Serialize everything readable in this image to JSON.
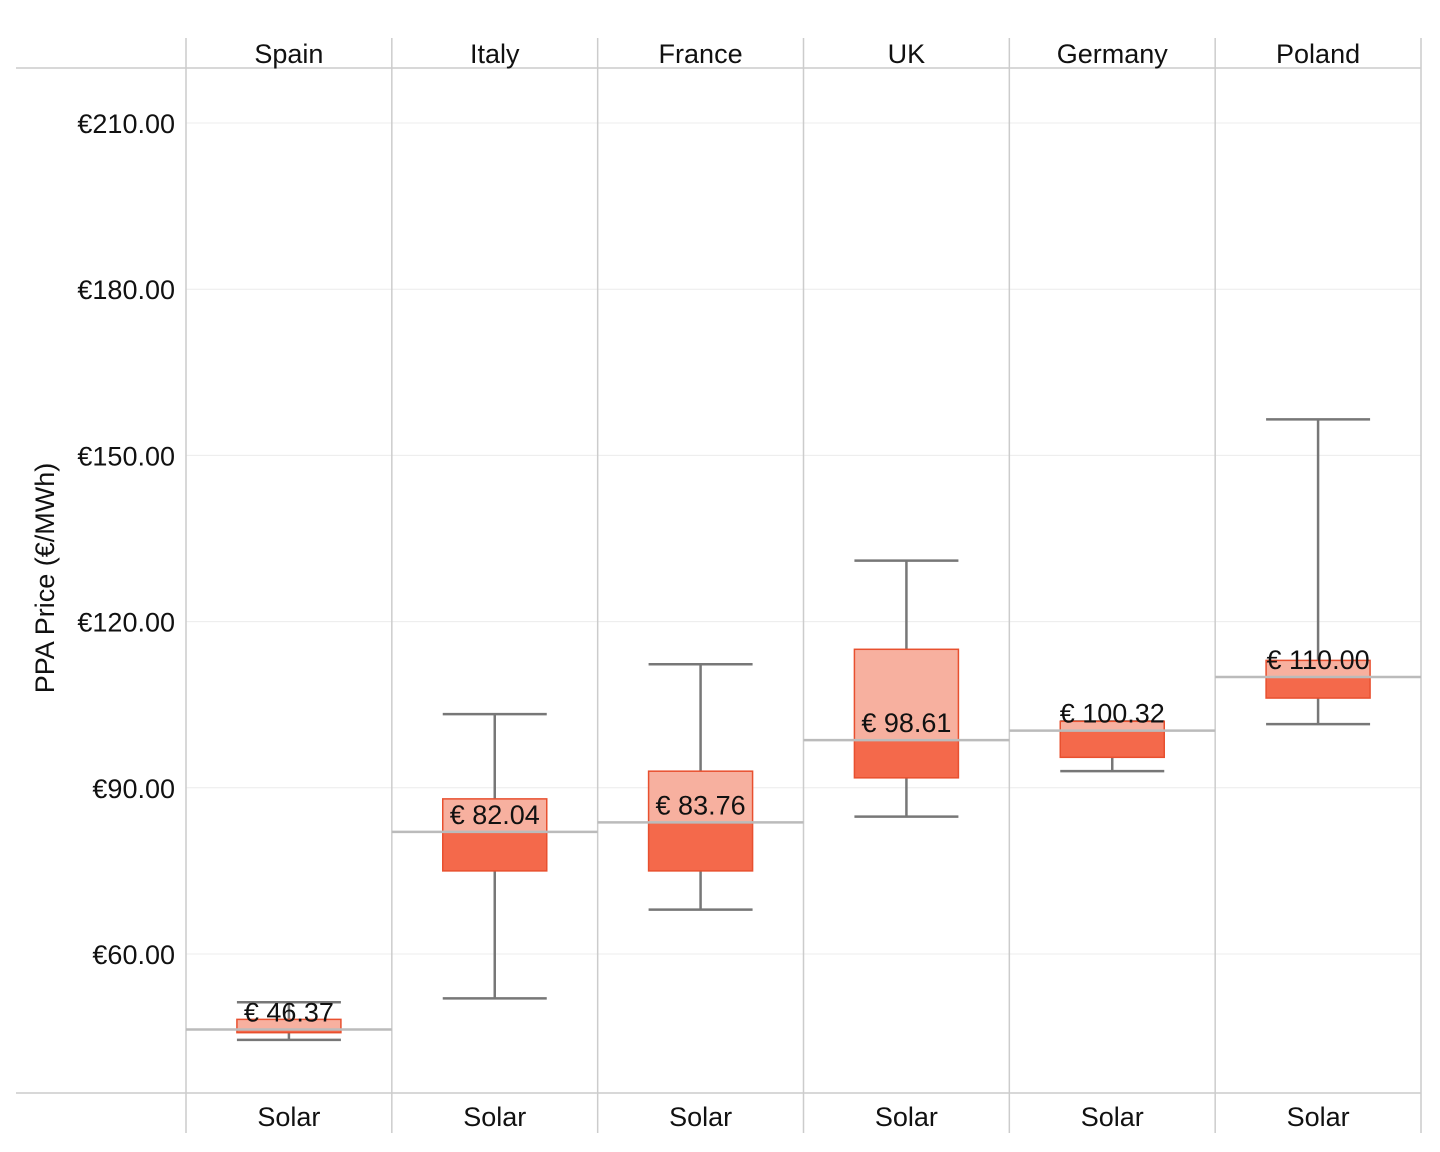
{
  "chart_data": {
    "type": "box",
    "ylabel": "PPA Price (€/MWh)",
    "ylim": [
      35,
      220
    ],
    "y_ticks": [
      {
        "value": 60,
        "label": "€60.00"
      },
      {
        "value": 90,
        "label": "€90.00"
      },
      {
        "value": 120,
        "label": "€120.00"
      },
      {
        "value": 150,
        "label": "€150.00"
      },
      {
        "value": 180,
        "label": "€180.00"
      },
      {
        "value": 210,
        "label": "€210.00"
      }
    ],
    "grid": true,
    "colors": {
      "box_lower": "#f4694b",
      "box_upper": "#f7b09f",
      "box_edge": "#e8502f",
      "whisker": "#777777",
      "median_line": "#bbbbbb",
      "panel_border": "#cccccc",
      "grid": "#ececec"
    },
    "panels": [
      {
        "country": "Spain",
        "category": "Solar",
        "whisker_low": 44.5,
        "q1": 45.8,
        "median": 46.37,
        "q3": 48.2,
        "whisker_high": 51.3,
        "label": "€ 46.37"
      },
      {
        "country": "Italy",
        "category": "Solar",
        "whisker_low": 52.0,
        "q1": 75.0,
        "median": 82.04,
        "q3": 88.0,
        "whisker_high": 103.3,
        "label": "€ 82.04"
      },
      {
        "country": "France",
        "category": "Solar",
        "whisker_low": 68.0,
        "q1": 75.0,
        "median": 83.76,
        "q3": 93.0,
        "whisker_high": 112.3,
        "label": "€ 83.76"
      },
      {
        "country": "UK",
        "category": "Solar",
        "whisker_low": 84.8,
        "q1": 91.8,
        "median": 98.61,
        "q3": 115.0,
        "whisker_high": 131.0,
        "label": "€ 98.61"
      },
      {
        "country": "Germany",
        "category": "Solar",
        "whisker_low": 93.0,
        "q1": 95.5,
        "median": 100.32,
        "q3": 102.0,
        "whisker_high": 102.0,
        "label": "€ 100.32"
      },
      {
        "country": "Poland",
        "category": "Solar",
        "whisker_low": 101.5,
        "q1": 106.2,
        "median": 110.0,
        "q3": 113.0,
        "whisker_high": 156.5,
        "label": "€ 110.00"
      }
    ]
  }
}
